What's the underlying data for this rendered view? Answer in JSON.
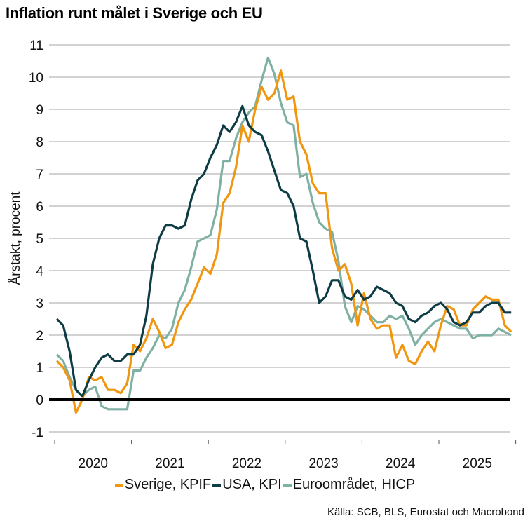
{
  "title": "Inflation runt målet i Sverige och EU",
  "source": "Källa: SCB, BLS, Eurostat och Macrobond",
  "chart_data": {
    "type": "line",
    "title": "Inflation runt målet i Sverige och EU",
    "ylabel": "Årstakt, procent",
    "xlabel": "",
    "ylim": [
      -1,
      11
    ],
    "yticks": [
      -1,
      0,
      1,
      2,
      3,
      4,
      5,
      6,
      7,
      8,
      9,
      10,
      11
    ],
    "xticks": [
      "2020",
      "2021",
      "2022",
      "2023",
      "2024",
      "2025"
    ],
    "x_start": "2020-01",
    "x_end": "2025-11",
    "frequency": "monthly",
    "grid": true,
    "legend": "bottom",
    "series": [
      {
        "name": "Sverige, KPIF",
        "color": "#f0960f",
        "values": [
          1.2,
          1.0,
          0.6,
          -0.4,
          0.0,
          0.7,
          0.6,
          0.7,
          0.3,
          0.3,
          0.2,
          0.5,
          1.7,
          1.5,
          1.9,
          2.5,
          2.1,
          1.6,
          1.7,
          2.4,
          2.8,
          3.1,
          3.6,
          4.1,
          3.9,
          4.5,
          6.1,
          6.4,
          7.2,
          8.5,
          8.0,
          9.0,
          9.7,
          9.3,
          9.5,
          10.2,
          9.3,
          9.4,
          8.0,
          7.6,
          6.7,
          6.4,
          6.4,
          4.7,
          4.0,
          4.2,
          3.6,
          2.3,
          3.3,
          2.5,
          2.2,
          2.3,
          2.3,
          1.3,
          1.7,
          1.2,
          1.1,
          1.5,
          1.8,
          1.5,
          2.3,
          2.9,
          2.8,
          2.3,
          2.3,
          2.8,
          3.0,
          3.2,
          3.1,
          3.1,
          2.3,
          2.1
        ]
      },
      {
        "name": "USA, KPI",
        "color": "#0d3c44",
        "values": [
          2.5,
          2.3,
          1.5,
          0.3,
          0.1,
          0.6,
          1.0,
          1.3,
          1.4,
          1.2,
          1.2,
          1.4,
          1.4,
          1.7,
          2.6,
          4.2,
          5.0,
          5.4,
          5.4,
          5.3,
          5.4,
          6.2,
          6.8,
          7.0,
          7.5,
          7.9,
          8.5,
          8.3,
          8.6,
          9.1,
          8.5,
          8.3,
          8.2,
          7.7,
          7.1,
          6.5,
          6.4,
          6.0,
          5.0,
          4.9,
          4.0,
          3.0,
          3.2,
          3.7,
          3.7,
          3.2,
          3.1,
          3.4,
          3.1,
          3.2,
          3.5,
          3.4,
          3.3,
          3.0,
          2.9,
          2.5,
          2.4,
          2.6,
          2.7,
          2.9,
          3.0,
          2.8,
          2.4,
          2.3,
          2.4,
          2.7,
          2.7,
          2.9,
          3.0,
          3.0,
          2.7,
          2.7
        ]
      },
      {
        "name": "Euroområdet, HICP",
        "color": "#7fb0a4",
        "values": [
          1.4,
          1.2,
          0.7,
          0.3,
          0.1,
          0.3,
          0.4,
          -0.2,
          -0.3,
          -0.3,
          -0.3,
          -0.3,
          0.9,
          0.9,
          1.3,
          1.6,
          2.0,
          1.9,
          2.2,
          3.0,
          3.4,
          4.1,
          4.9,
          5.0,
          5.1,
          5.9,
          7.4,
          7.4,
          8.1,
          8.6,
          8.9,
          9.1,
          9.9,
          10.6,
          10.1,
          9.2,
          8.6,
          8.5,
          6.9,
          7.0,
          6.1,
          5.5,
          5.3,
          5.2,
          4.3,
          2.9,
          2.4,
          2.9,
          2.8,
          2.6,
          2.4,
          2.4,
          2.6,
          2.5,
          2.6,
          2.2,
          1.7,
          2.0,
          2.2,
          2.4,
          2.5,
          2.4,
          2.3,
          2.2,
          2.2,
          1.9,
          2.0,
          2.0,
          2.0,
          2.2,
          2.1,
          2.0
        ]
      }
    ]
  }
}
